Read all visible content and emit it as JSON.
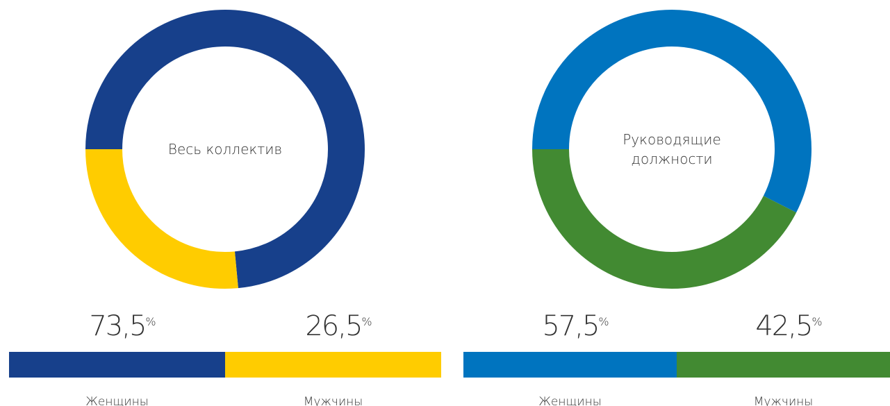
{
  "chart_data": [
    {
      "type": "donut",
      "center_label": [
        "Весь коллектив"
      ],
      "categories": [
        "Женщины",
        "Мужчины"
      ],
      "values": [
        73.5,
        26.5
      ],
      "value_labels": [
        "73,5",
        "26,5"
      ],
      "unit": "%",
      "colors": [
        "#17408b",
        "#ffcc00"
      ]
    },
    {
      "type": "donut",
      "center_label": [
        "Руководящие",
        "должности"
      ],
      "categories": [
        "Женщины",
        "Мужчины"
      ],
      "values": [
        57.5,
        42.5
      ],
      "value_labels": [
        "57,5",
        "42,5"
      ],
      "unit": "%",
      "colors": [
        "#0074bf",
        "#428a32"
      ]
    }
  ]
}
